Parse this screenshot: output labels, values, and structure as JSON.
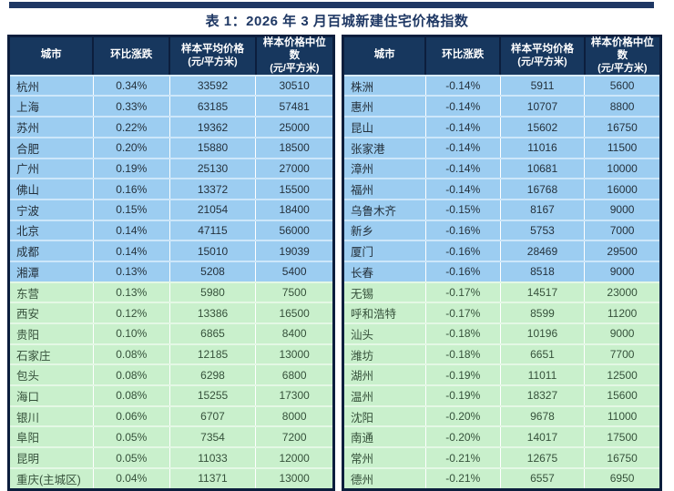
{
  "page": {
    "title": "表 1：2026 年 3 月百城新建住宅价格指数"
  },
  "colors": {
    "top_bar": "#1f3864",
    "title_text": "#1f3864",
    "header_bg": "#17375e",
    "table_border": "#0c1e3d",
    "row_blue": "#9ccdf1",
    "row_green": "#c9f0cc"
  },
  "headers": {
    "city": "城市",
    "change": "环比涨跌",
    "avg": "样本平均价格",
    "median": "样本价格中位数",
    "unit": "(元/平方米)"
  },
  "tables": {
    "gainers": {
      "rows": [
        {
          "city": "杭州",
          "change": "0.34%",
          "avg": "33592",
          "median": "30510",
          "group": "blue"
        },
        {
          "city": "上海",
          "change": "0.33%",
          "avg": "63185",
          "median": "57481",
          "group": "blue"
        },
        {
          "city": "苏州",
          "change": "0.22%",
          "avg": "19362",
          "median": "25000",
          "group": "blue"
        },
        {
          "city": "合肥",
          "change": "0.20%",
          "avg": "15880",
          "median": "18500",
          "group": "blue"
        },
        {
          "city": "广州",
          "change": "0.19%",
          "avg": "25130",
          "median": "27000",
          "group": "blue"
        },
        {
          "city": "佛山",
          "change": "0.16%",
          "avg": "13372",
          "median": "15500",
          "group": "blue"
        },
        {
          "city": "宁波",
          "change": "0.15%",
          "avg": "21054",
          "median": "18400",
          "group": "blue"
        },
        {
          "city": "北京",
          "change": "0.14%",
          "avg": "47115",
          "median": "56000",
          "group": "blue"
        },
        {
          "city": "成都",
          "change": "0.14%",
          "avg": "15010",
          "median": "19039",
          "group": "blue"
        },
        {
          "city": "湘潭",
          "change": "0.13%",
          "avg": "5208",
          "median": "5400",
          "group": "blue"
        },
        {
          "city": "东营",
          "change": "0.13%",
          "avg": "5980",
          "median": "7500",
          "group": "green"
        },
        {
          "city": "西安",
          "change": "0.12%",
          "avg": "13386",
          "median": "16500",
          "group": "green"
        },
        {
          "city": "贵阳",
          "change": "0.10%",
          "avg": "6865",
          "median": "8400",
          "group": "green"
        },
        {
          "city": "石家庄",
          "change": "0.08%",
          "avg": "12185",
          "median": "13000",
          "group": "green"
        },
        {
          "city": "包头",
          "change": "0.08%",
          "avg": "6298",
          "median": "6800",
          "group": "green"
        },
        {
          "city": "海口",
          "change": "0.08%",
          "avg": "15255",
          "median": "17300",
          "group": "green"
        },
        {
          "city": "银川",
          "change": "0.06%",
          "avg": "6707",
          "median": "8000",
          "group": "green"
        },
        {
          "city": "阜阳",
          "change": "0.05%",
          "avg": "7354",
          "median": "7200",
          "group": "green"
        },
        {
          "city": "昆明",
          "change": "0.05%",
          "avg": "11033",
          "median": "12000",
          "group": "green"
        },
        {
          "city": "重庆(主城区)",
          "change": "0.04%",
          "avg": "11371",
          "median": "13000",
          "group": "green"
        }
      ]
    },
    "decliners": {
      "rows": [
        {
          "city": "株洲",
          "change": "-0.14%",
          "avg": "5911",
          "median": "5600",
          "group": "blue"
        },
        {
          "city": "惠州",
          "change": "-0.14%",
          "avg": "10707",
          "median": "8800",
          "group": "blue"
        },
        {
          "city": "昆山",
          "change": "-0.14%",
          "avg": "15602",
          "median": "16750",
          "group": "blue"
        },
        {
          "city": "张家港",
          "change": "-0.14%",
          "avg": "11016",
          "median": "11500",
          "group": "blue"
        },
        {
          "city": "漳州",
          "change": "-0.14%",
          "avg": "10681",
          "median": "10000",
          "group": "blue"
        },
        {
          "city": "福州",
          "change": "-0.14%",
          "avg": "16768",
          "median": "16000",
          "group": "blue"
        },
        {
          "city": "乌鲁木齐",
          "change": "-0.15%",
          "avg": "8167",
          "median": "9000",
          "group": "blue"
        },
        {
          "city": "新乡",
          "change": "-0.16%",
          "avg": "5753",
          "median": "7000",
          "group": "blue"
        },
        {
          "city": "厦门",
          "change": "-0.16%",
          "avg": "28469",
          "median": "29500",
          "group": "blue"
        },
        {
          "city": "长春",
          "change": "-0.16%",
          "avg": "8518",
          "median": "9000",
          "group": "blue"
        },
        {
          "city": "无锡",
          "change": "-0.17%",
          "avg": "14517",
          "median": "23000",
          "group": "green"
        },
        {
          "city": "呼和浩特",
          "change": "-0.17%",
          "avg": "8599",
          "median": "11200",
          "group": "green"
        },
        {
          "city": "汕头",
          "change": "-0.18%",
          "avg": "10196",
          "median": "9000",
          "group": "green"
        },
        {
          "city": "潍坊",
          "change": "-0.18%",
          "avg": "6651",
          "median": "7700",
          "group": "green"
        },
        {
          "city": "湖州",
          "change": "-0.19%",
          "avg": "11011",
          "median": "12500",
          "group": "green"
        },
        {
          "city": "温州",
          "change": "-0.19%",
          "avg": "18327",
          "median": "15600",
          "group": "green"
        },
        {
          "city": "沈阳",
          "change": "-0.20%",
          "avg": "9678",
          "median": "11000",
          "group": "green"
        },
        {
          "city": "南通",
          "change": "-0.20%",
          "avg": "14017",
          "median": "17500",
          "group": "green"
        },
        {
          "city": "常州",
          "change": "-0.21%",
          "avg": "12675",
          "median": "16750",
          "group": "green"
        },
        {
          "city": "德州",
          "change": "-0.21%",
          "avg": "6557",
          "median": "6950",
          "group": "green"
        }
      ]
    }
  }
}
